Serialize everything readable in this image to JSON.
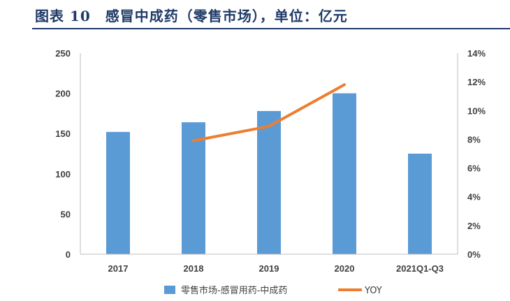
{
  "title": "图表 10　感冒中成药（零售市场），单位：亿元",
  "colors": {
    "bar": "#5b9bd5",
    "line": "#ed7d31",
    "title": "#1f3a68",
    "axis": "#bfbfbf",
    "text": "#404040"
  },
  "chart_data": {
    "type": "bar",
    "categories": [
      "2017",
      "2018",
      "2019",
      "2020",
      "2021Q1-Q3"
    ],
    "series": [
      {
        "name": "零售市场-感冒用药-中成药",
        "type": "bar",
        "axis": "left",
        "values": [
          152,
          164,
          178,
          200,
          125
        ]
      },
      {
        "name": "YOY",
        "type": "line",
        "axis": "right",
        "values": [
          null,
          0.079,
          0.089,
          0.118,
          null
        ]
      }
    ],
    "ylim": [
      0,
      250
    ],
    "yticks": [
      "0",
      "50",
      "100",
      "150",
      "200",
      "250"
    ],
    "y2lim": [
      0,
      0.14
    ],
    "y2ticks": [
      "0%",
      "2%",
      "4%",
      "6%",
      "8%",
      "10%",
      "12%",
      "14%"
    ],
    "grid": false,
    "legend": "bottom"
  }
}
